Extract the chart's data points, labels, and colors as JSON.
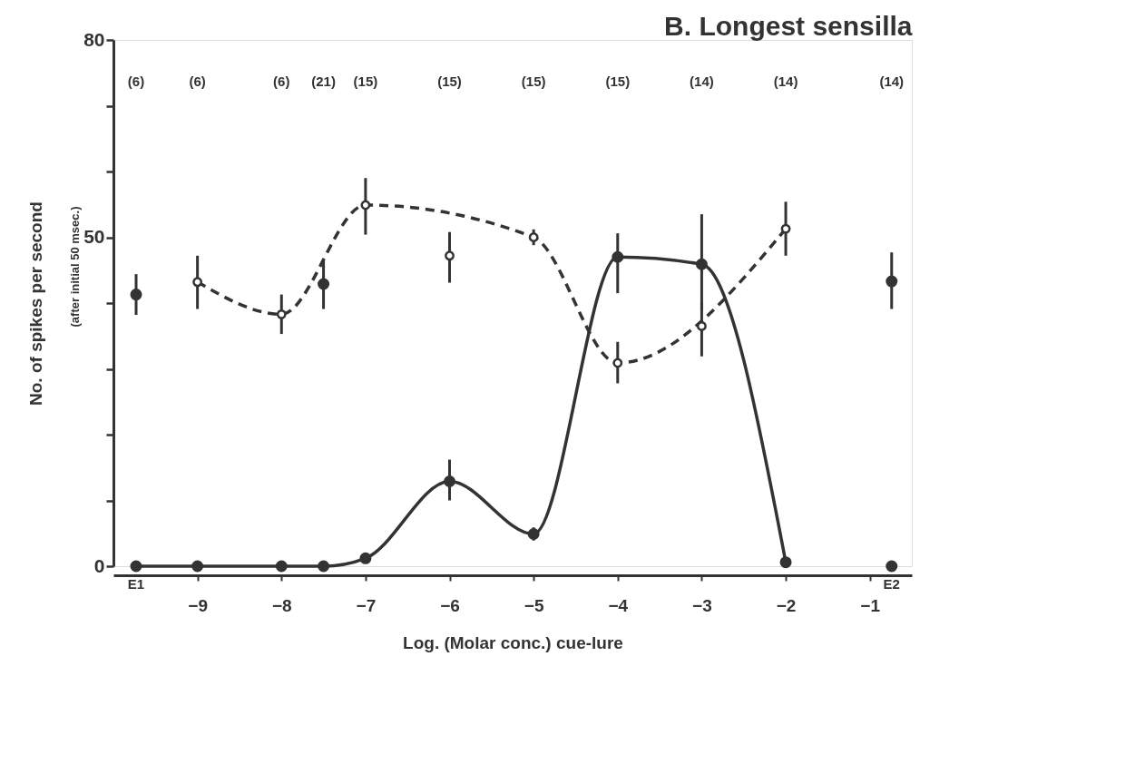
{
  "chart_data": {
    "type": "line",
    "title": "B. Longest sensilla",
    "xlabel": "Log. (Molar conc.) cue-lure",
    "ylabel": "No. of spikes per second",
    "xlim": [
      -10,
      -0.5
    ],
    "ylim": [
      0,
      80
    ],
    "xticks": [
      -9,
      -8,
      -7,
      -6,
      -5,
      -4,
      -3,
      -2,
      -1
    ],
    "yticks": [
      0,
      {
        "value": 10,
        "label": null
      },
      {
        "value": 20,
        "label": null
      },
      {
        "value": 30,
        "label": null
      },
      {
        "value": 40,
        "label": null
      },
      50,
      {
        "value": 60,
        "label": null
      },
      {
        "value": 70,
        "label": null
      },
      80
    ],
    "grid": false,
    "marker": "circle",
    "series": [
      {
        "line_style": "solid",
        "color": "#333333",
        "x": [
          -9.73,
          -9,
          -8,
          -7.5,
          -7,
          -6,
          -5,
          -4,
          -3,
          -2
        ],
        "values": [
          0,
          0,
          0,
          0,
          1.2,
          12.9,
          4.9,
          47.0,
          45.9,
          0.6
        ],
        "errors": [
          null,
          null,
          null,
          null,
          null,
          [
            10,
            16.2
          ],
          [
            3.9,
            5.9
          ],
          [
            41.5,
            50.6
          ],
          [
            38.9,
            53.5
          ],
          null
        ]
      },
      {
        "type": "scatter",
        "line_style": "solid",
        "color": "#333333",
        "x": [
          -9.73,
          -7.5,
          -0.74,
          -0.74
        ],
        "values": [
          41.3,
          42.9,
          43.3,
          0
        ],
        "errors": [
          [
            38.2,
            44.4
          ],
          [
            39.1,
            46.5
          ],
          [
            39.1,
            47.7
          ],
          null
        ]
      },
      {
        "line_style": "dashed",
        "color": "#333333",
        "x": [
          -9,
          -8,
          -7,
          -5,
          -4,
          -2
        ],
        "values": [
          43.2,
          38.3,
          54.9,
          50.0,
          30.9,
          51.3
        ],
        "errors": [
          [
            39.1,
            47.2
          ],
          [
            35.3,
            41.3
          ],
          [
            50.4,
            59.0
          ],
          [
            48.8,
            51.2
          ],
          [
            27.8,
            34.1
          ],
          [
            47.2,
            55.4
          ]
        ]
      },
      {
        "type": "scatter",
        "line_style": "dashed",
        "color": "#333333",
        "x": [
          -6,
          -3
        ],
        "values": [
          47.2,
          36.5
        ],
        "errors": [
          [
            43.1,
            50.8
          ],
          [
            31.9,
            40.1
          ]
        ]
      }
    ],
    "annotations": [
      "(after initial 50 msec.)",
      {
        "text": "E1",
        "x": -9.73,
        "y": 0
      },
      {
        "text": "E2",
        "x": -0.74,
        "y": 0
      },
      "(6)",
      "(6)",
      "(6)",
      "(21)",
      "(15)",
      "(15)",
      "(15)",
      "(15)",
      "(14)",
      "(14)",
      "(14)"
    ]
  }
}
